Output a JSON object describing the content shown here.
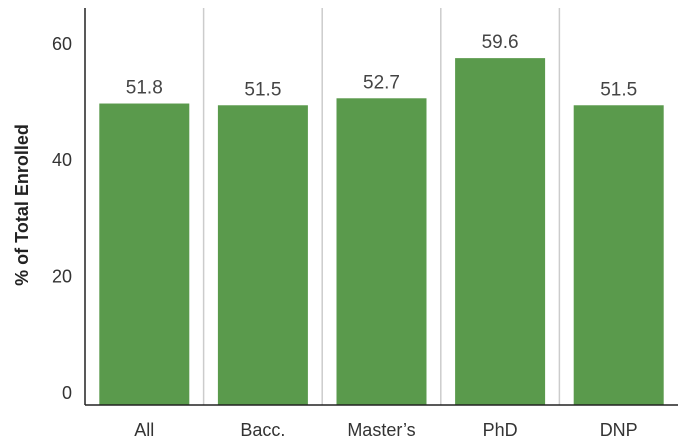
{
  "chart_data": {
    "type": "bar",
    "title": "",
    "xlabel": "",
    "ylabel": "% of Total Enrolled",
    "categories": [
      "All",
      "Bacc.",
      "Master’s",
      "PhD",
      "DNP"
    ],
    "values": [
      51.8,
      51.5,
      52.7,
      59.6,
      51.5
    ],
    "data_labels": [
      "51.8",
      "51.5",
      "52.7",
      "59.6",
      "51.5"
    ],
    "y_ticks": [
      0,
      20,
      40,
      60
    ],
    "y_tick_labels": [
      "0",
      "20",
      "40",
      "60"
    ],
    "ylim": [
      0,
      67.5
    ],
    "grid": "vertical separators between categories",
    "legend": "none",
    "colors": {
      "bar": "#5a9a4c",
      "separator": "#cccccc",
      "axis": "#222222"
    }
  }
}
